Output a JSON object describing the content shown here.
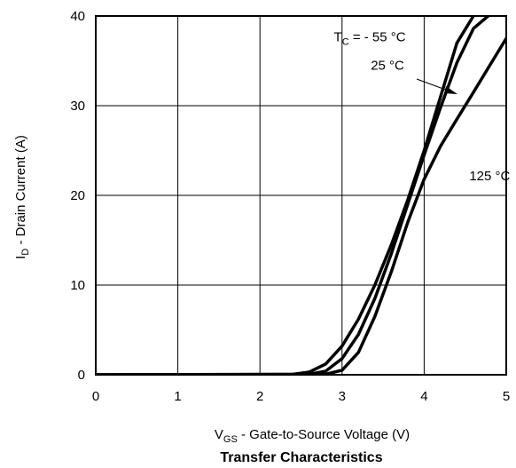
{
  "chart_data": {
    "type": "line",
    "title": "Transfer Characteristics",
    "xlabel": {
      "main": "V",
      "sub": "GS",
      "rest": " - Gate-to-Source Voltage (V)"
    },
    "ylabel": {
      "main": "I",
      "sub": "D",
      "rest": " - Drain Current  (A)"
    },
    "xlim": [
      0,
      5
    ],
    "ylim": [
      0,
      40
    ],
    "xticks": [
      "0",
      "1",
      "2",
      "3",
      "4",
      "5"
    ],
    "yticks": [
      "0",
      "10",
      "20",
      "30",
      "40"
    ],
    "grid": true,
    "series": [
      {
        "name": "- 55 °C",
        "x": [
          0,
          2.4,
          2.6,
          2.8,
          3.0,
          3.2,
          3.4,
          3.6,
          3.8,
          4.0,
          4.2,
          4.4,
          4.6
        ],
        "y": [
          0,
          0.05,
          0.3,
          1.2,
          3.2,
          6.2,
          10.0,
          14.5,
          19.5,
          25.0,
          31.0,
          37.0,
          40.0
        ]
      },
      {
        "name": "25 °C",
        "x": [
          0,
          2.6,
          2.8,
          3.0,
          3.2,
          3.4,
          3.6,
          3.8,
          4.0,
          4.2,
          4.4,
          4.6,
          4.78
        ],
        "y": [
          0,
          0.05,
          0.4,
          1.8,
          4.5,
          8.5,
          13.5,
          19.0,
          24.5,
          29.8,
          34.8,
          38.6,
          40.0
        ]
      },
      {
        "name": "125 °C",
        "x": [
          0,
          2.8,
          3.0,
          3.2,
          3.4,
          3.6,
          3.8,
          4.0,
          4.2,
          4.4,
          4.6,
          4.8,
          5.0
        ],
        "y": [
          0,
          0.05,
          0.5,
          2.5,
          6.5,
          11.5,
          17.0,
          21.8,
          25.5,
          28.5,
          31.5,
          34.5,
          37.5
        ]
      }
    ],
    "annotations": [
      {
        "type": "label",
        "text_main": "T",
        "text_sub": "C",
        "text_rest": " = - 55 °C",
        "x": 2.9,
        "y": 37.2
      },
      {
        "type": "label",
        "text_main": "",
        "text_sub": "",
        "text_rest": "25 °C",
        "x": 3.35,
        "y": 34.0
      },
      {
        "type": "label",
        "text_main": "",
        "text_sub": "",
        "text_rest": "125 °C",
        "x": 4.55,
        "y": 21.7
      }
    ]
  }
}
